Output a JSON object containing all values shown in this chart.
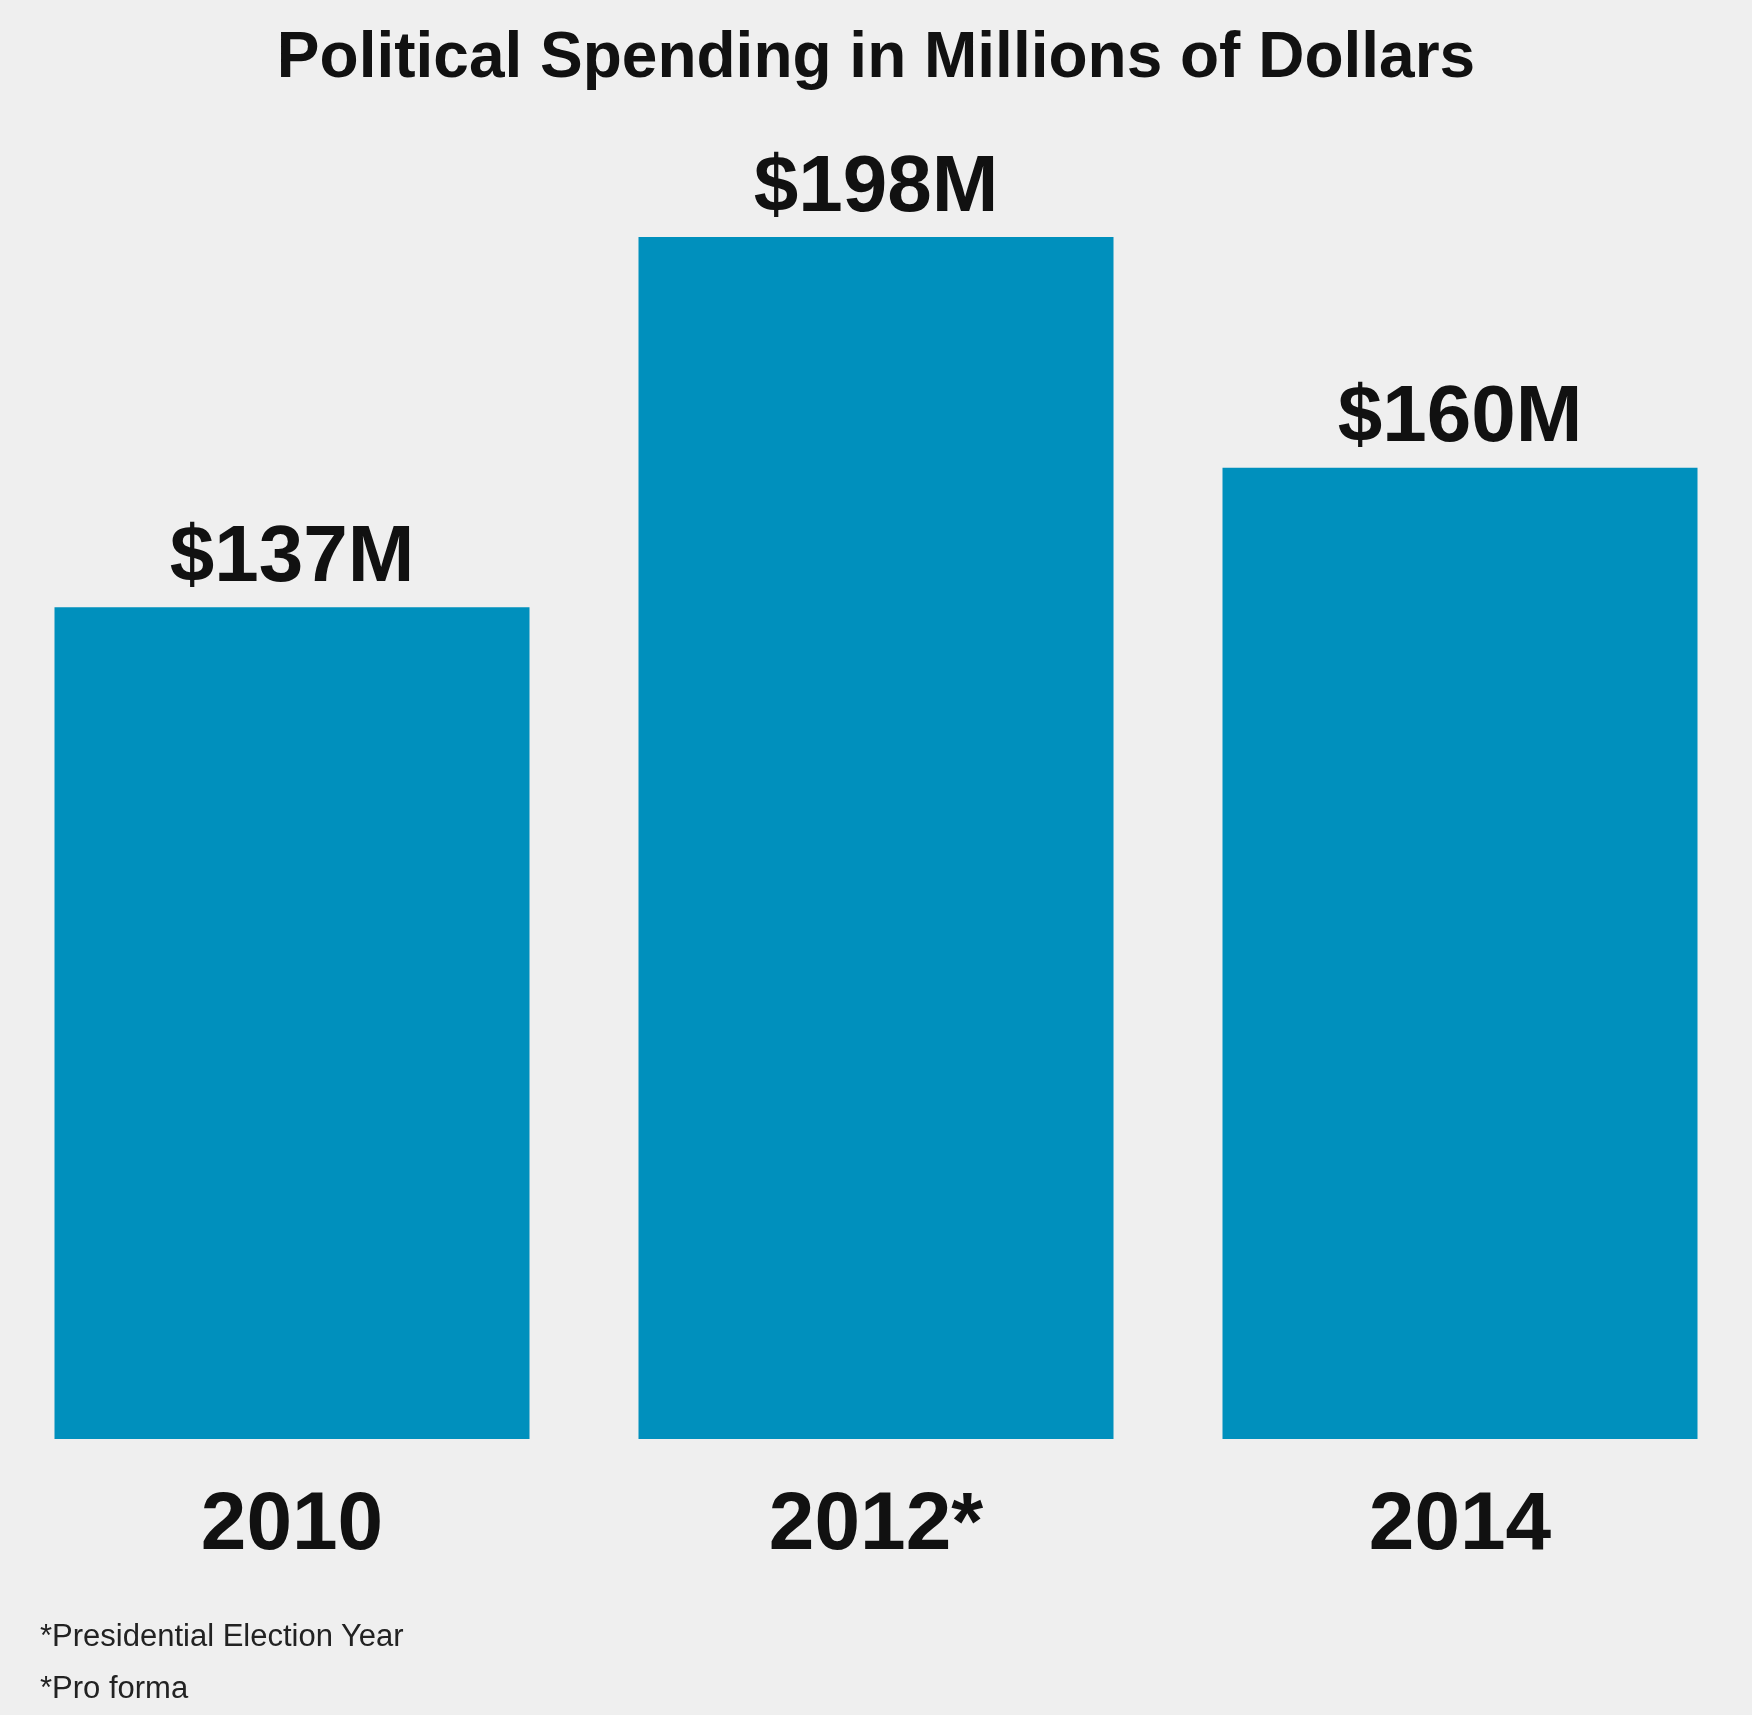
{
  "chart_data": {
    "type": "bar",
    "title": "Political Spending in Millions of Dollars",
    "categories": [
      "2010",
      "2012*",
      "2014"
    ],
    "values": [
      137,
      198,
      160
    ],
    "value_labels": [
      "$137M",
      "$198M",
      "$160M"
    ],
    "color": "#0090bd",
    "annotations": [
      "*Presidential Election Year",
      "*Pro forma"
    ]
  }
}
